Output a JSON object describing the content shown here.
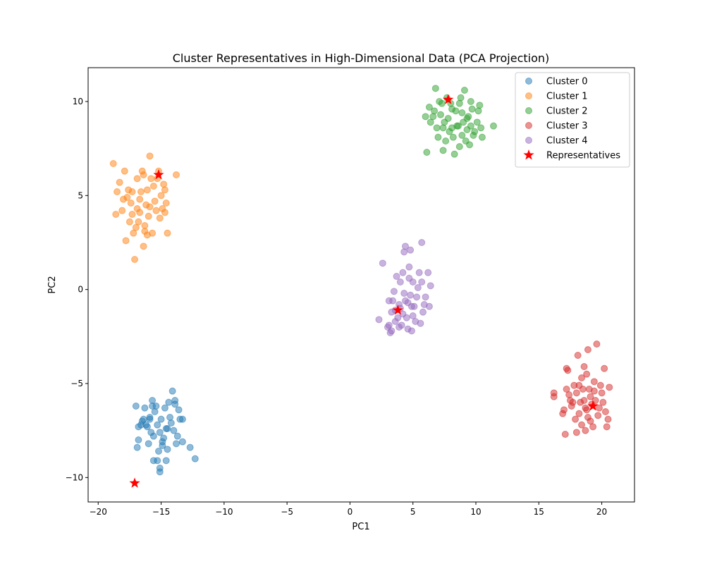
{
  "chart_data": {
    "type": "scatter",
    "title": "Cluster Representatives in High-Dimensional Data (PCA Projection)",
    "xlabel": "PC1",
    "ylabel": "PC2",
    "xlim": [
      -20.8,
      22.6
    ],
    "ylim": [
      -11.3,
      11.8
    ],
    "xticks": [
      -20,
      -15,
      -10,
      -5,
      0,
      5,
      10,
      15,
      20
    ],
    "xtick_labels": [
      "−20",
      "−15",
      "−10",
      "−5",
      "0",
      "5",
      "10",
      "15",
      "20"
    ],
    "yticks": [
      -10,
      -5,
      0,
      5,
      10
    ],
    "ytick_labels": [
      "−10",
      "−5",
      "0",
      "5",
      "10"
    ],
    "grid": false,
    "legend_position": "top-right",
    "series": [
      {
        "name": "Cluster 0",
        "color": "#1f77b4",
        "points": [
          [
            -17,
            -6.2
          ],
          [
            -16.8,
            -8
          ],
          [
            -16.9,
            -8.4
          ],
          [
            -16.5,
            -7
          ],
          [
            -16.3,
            -6.3
          ],
          [
            -16.1,
            -7.3
          ],
          [
            -15.9,
            -6.9
          ],
          [
            -15.7,
            -5.9
          ],
          [
            -15.5,
            -6.5
          ],
          [
            -15.3,
            -7.2
          ],
          [
            -15.1,
            -7.6
          ],
          [
            -14.9,
            -8.1
          ],
          [
            -14.7,
            -6.3
          ],
          [
            -14.5,
            -7.4
          ],
          [
            -14.3,
            -6.8
          ],
          [
            -14.1,
            -5.4
          ],
          [
            -13.9,
            -6.1
          ],
          [
            -13.7,
            -7.8
          ],
          [
            -13.5,
            -6.9
          ],
          [
            -13.3,
            -8.1
          ],
          [
            -12.7,
            -8.4
          ],
          [
            -12.3,
            -9
          ],
          [
            -15.6,
            -9.1
          ],
          [
            -15.1,
            -9.5
          ],
          [
            -14.6,
            -9.1
          ],
          [
            -15.1,
            -9.7
          ],
          [
            -14.5,
            -8.5
          ],
          [
            -16,
            -8.2
          ],
          [
            -15.8,
            -7.6
          ],
          [
            -14.2,
            -7.1
          ],
          [
            -13.6,
            -6.4
          ],
          [
            -16.6,
            -7.2
          ],
          [
            -15.4,
            -6.2
          ],
          [
            -15,
            -6.9
          ],
          [
            -14.4,
            -6
          ],
          [
            -14.8,
            -7.9
          ],
          [
            -13.8,
            -8.2
          ],
          [
            -15.2,
            -8.6
          ],
          [
            -16.4,
            -6.9
          ],
          [
            -14,
            -7.5
          ],
          [
            -15.9,
            -6.8
          ],
          [
            -15.3,
            -9.1
          ],
          [
            -13.3,
            -6.9
          ],
          [
            -14.6,
            -7.4
          ],
          [
            -16.8,
            -7.3
          ],
          [
            -15.6,
            -7.8
          ],
          [
            -14.9,
            -8.3
          ],
          [
            -16.2,
            -7.2
          ],
          [
            -13.9,
            -5.9
          ],
          [
            -15.7,
            -6.2
          ]
        ]
      },
      {
        "name": "Cluster 1",
        "color": "#ff7f0e",
        "points": [
          [
            -18.8,
            6.7
          ],
          [
            -18.6,
            4
          ],
          [
            -18.3,
            5.7
          ],
          [
            -18.1,
            4.2
          ],
          [
            -17.9,
            6.3
          ],
          [
            -17.7,
            4.9
          ],
          [
            -17.5,
            3.6
          ],
          [
            -17.3,
            5.2
          ],
          [
            -17.1,
            1.6
          ],
          [
            -16.9,
            5.9
          ],
          [
            -16.7,
            4.1
          ],
          [
            -16.5,
            6.3
          ],
          [
            -16.4,
            2.3
          ],
          [
            -16.3,
            3.4
          ],
          [
            -16.1,
            5.3
          ],
          [
            -15.9,
            7.1
          ],
          [
            -15.7,
            3
          ],
          [
            -15.5,
            4.7
          ],
          [
            -15.3,
            5.9
          ],
          [
            -15.1,
            3.8
          ],
          [
            -14.9,
            4.3
          ],
          [
            -14.7,
            5.3
          ],
          [
            -14.5,
            3
          ],
          [
            -13.8,
            6.1
          ],
          [
            -17.8,
            2.6
          ],
          [
            -17.2,
            3
          ],
          [
            -16.8,
            3.6
          ],
          [
            -16.2,
            4.5
          ],
          [
            -15.6,
            5.5
          ],
          [
            -15,
            5
          ],
          [
            -14.7,
            4.1
          ],
          [
            -16.6,
            5.2
          ],
          [
            -17.4,
            4.6
          ],
          [
            -18,
            4.8
          ],
          [
            -16.9,
            4.3
          ],
          [
            -16,
            3.9
          ],
          [
            -15.4,
            4.2
          ],
          [
            -15.8,
            5.9
          ],
          [
            -17.6,
            5.3
          ],
          [
            -16.4,
            6.1
          ],
          [
            -14.6,
            4.6
          ],
          [
            -17,
            3.3
          ],
          [
            -15.2,
            6.3
          ],
          [
            -16.7,
            4.8
          ],
          [
            -15.9,
            4.4
          ],
          [
            -16.3,
            3.1
          ],
          [
            -17.3,
            4
          ],
          [
            -18.5,
            5.2
          ],
          [
            -14.8,
            5.6
          ],
          [
            -16.1,
            2.9
          ]
        ]
      },
      {
        "name": "Cluster 2",
        "color": "#2ca02c",
        "points": [
          [
            6.1,
            7.3
          ],
          [
            6.3,
            9.7
          ],
          [
            6.6,
            9.2
          ],
          [
            6.8,
            10.7
          ],
          [
            7,
            8.1
          ],
          [
            7.2,
            9.3
          ],
          [
            7.4,
            7.4
          ],
          [
            7.5,
            8.9
          ],
          [
            7.7,
            10.2
          ],
          [
            7.9,
            8.4
          ],
          [
            8.1,
            9.6
          ],
          [
            8.3,
            7.2
          ],
          [
            8.5,
            8.7
          ],
          [
            8.7,
            9.9
          ],
          [
            8.9,
            8.2
          ],
          [
            9.1,
            10.6
          ],
          [
            9.3,
            9.1
          ],
          [
            9.5,
            7.7
          ],
          [
            9.7,
            9.6
          ],
          [
            9.9,
            8.4
          ],
          [
            10.1,
            8.9
          ],
          [
            10.3,
            9.8
          ],
          [
            10.5,
            8.1
          ],
          [
            11.4,
            8.7
          ],
          [
            6,
            9.2
          ],
          [
            6.9,
            8.6
          ],
          [
            7.8,
            9.1
          ],
          [
            8.6,
            8.7
          ],
          [
            9.4,
            9.2
          ],
          [
            8,
            9.9
          ],
          [
            8.8,
            10.2
          ],
          [
            9.6,
            8.7
          ],
          [
            7.3,
            9.9
          ],
          [
            8.2,
            8.1
          ],
          [
            9.2,
            7.9
          ],
          [
            10.2,
            9.5
          ],
          [
            6.4,
            8.9
          ],
          [
            7.1,
            10
          ],
          [
            8.9,
            9.4
          ],
          [
            9.8,
            8.2
          ],
          [
            8.4,
            9.5
          ],
          [
            7.6,
            7.9
          ],
          [
            9,
            8.9
          ],
          [
            10.4,
            8.6
          ],
          [
            8.7,
            7.6
          ],
          [
            7.4,
            8.6
          ],
          [
            6.7,
            9.5
          ],
          [
            9.6,
            10
          ],
          [
            8.1,
            8.6
          ],
          [
            9.3,
            8.5
          ]
        ]
      },
      {
        "name": "Cluster 3",
        "color": "#d62728",
        "points": [
          [
            16.2,
            -5.5
          ],
          [
            16.2,
            -5.7
          ],
          [
            16.9,
            -6.6
          ],
          [
            17,
            -6.4
          ],
          [
            17.1,
            -7.7
          ],
          [
            17.2,
            -5.3
          ],
          [
            17.3,
            -4.3
          ],
          [
            17.4,
            -5.6
          ],
          [
            17.6,
            -6.2
          ],
          [
            17.8,
            -5.1
          ],
          [
            18,
            -7.6
          ],
          [
            18.1,
            -3.5
          ],
          [
            18.2,
            -6.6
          ],
          [
            18.4,
            -4.7
          ],
          [
            18.6,
            -5.9
          ],
          [
            18.8,
            -4.5
          ],
          [
            18.9,
            -6.8
          ],
          [
            19,
            -5.3
          ],
          [
            19.2,
            -6.1
          ],
          [
            19.3,
            -7.3
          ],
          [
            19.4,
            -4.9
          ],
          [
            19.6,
            -2.9
          ],
          [
            19.8,
            -6.3
          ],
          [
            20,
            -5.5
          ],
          [
            20.2,
            -4.2
          ],
          [
            20.4,
            -7.3
          ],
          [
            20.6,
            -5.2
          ],
          [
            20.5,
            -6.9
          ],
          [
            18,
            -5.5
          ],
          [
            18.7,
            -6.3
          ],
          [
            19.1,
            -5.7
          ],
          [
            17.9,
            -6.9
          ],
          [
            18.3,
            -6
          ],
          [
            19.5,
            -5.9
          ],
          [
            18.5,
            -5.3
          ],
          [
            17.5,
            -5.9
          ],
          [
            19.7,
            -6.7
          ],
          [
            18.9,
            -3.2
          ],
          [
            18.4,
            -7.2
          ],
          [
            19.9,
            -5.1
          ],
          [
            17.7,
            -6
          ],
          [
            18.6,
            -4.1
          ],
          [
            20.3,
            -6.5
          ],
          [
            18.2,
            -5.1
          ],
          [
            19.1,
            -7
          ],
          [
            17.2,
            -4.2
          ],
          [
            18.8,
            -6.4
          ],
          [
            19.4,
            -5.4
          ],
          [
            20.1,
            -6
          ],
          [
            18.7,
            -7.5
          ]
        ]
      },
      {
        "name": "Cluster 4",
        "color": "#9467bd",
        "points": [
          [
            2.3,
            -1.6
          ],
          [
            2.6,
            1.4
          ],
          [
            3,
            -2
          ],
          [
            3.1,
            -0.6
          ],
          [
            3.2,
            -2.3
          ],
          [
            3.3,
            -1.2
          ],
          [
            3.5,
            -0.1
          ],
          [
            3.6,
            -1.7
          ],
          [
            3.7,
            0.7
          ],
          [
            3.9,
            -2
          ],
          [
            4,
            0.4
          ],
          [
            4.2,
            -1.3
          ],
          [
            4.3,
            2
          ],
          [
            4.4,
            -0.6
          ],
          [
            4.6,
            -2.1
          ],
          [
            4.7,
            1.2
          ],
          [
            4.9,
            -0.9
          ],
          [
            5,
            0.4
          ],
          [
            5.2,
            -1.7
          ],
          [
            5.3,
            -0.4
          ],
          [
            5.5,
            0.9
          ],
          [
            5.7,
            2.5
          ],
          [
            5.8,
            -1.2
          ],
          [
            6,
            -0.4
          ],
          [
            6.2,
            0.9
          ],
          [
            6.4,
            0.2
          ],
          [
            4.4,
            2.3
          ],
          [
            4.8,
            2.1
          ],
          [
            3.9,
            -0.8
          ],
          [
            4.5,
            -1.5
          ],
          [
            5.1,
            -0.9
          ],
          [
            3.4,
            -0.6
          ],
          [
            4.1,
            -1.9
          ],
          [
            5.6,
            -1.8
          ],
          [
            4.8,
            -0.3
          ],
          [
            3.6,
            -1.1
          ],
          [
            5.4,
            0.1
          ],
          [
            4.2,
            0.9
          ],
          [
            3.1,
            -1.9
          ],
          [
            5.9,
            -0.8
          ],
          [
            4.6,
            -0.7
          ],
          [
            3.8,
            -1.5
          ],
          [
            5,
            -1.4
          ],
          [
            4.3,
            -0.2
          ],
          [
            3.3,
            -2.2
          ],
          [
            5.7,
            0.4
          ],
          [
            4.9,
            -2.2
          ],
          [
            4,
            -1
          ],
          [
            6.3,
            -0.9
          ],
          [
            4.7,
            0.6
          ]
        ]
      },
      {
        "name": "Representatives",
        "color": "#ff0000",
        "marker": "star",
        "points": [
          [
            -17.1,
            -10.3
          ],
          [
            -15.2,
            6.1
          ],
          [
            7.8,
            10.1
          ],
          [
            19.3,
            -6.2
          ],
          [
            3.8,
            -1.1
          ]
        ]
      }
    ]
  }
}
